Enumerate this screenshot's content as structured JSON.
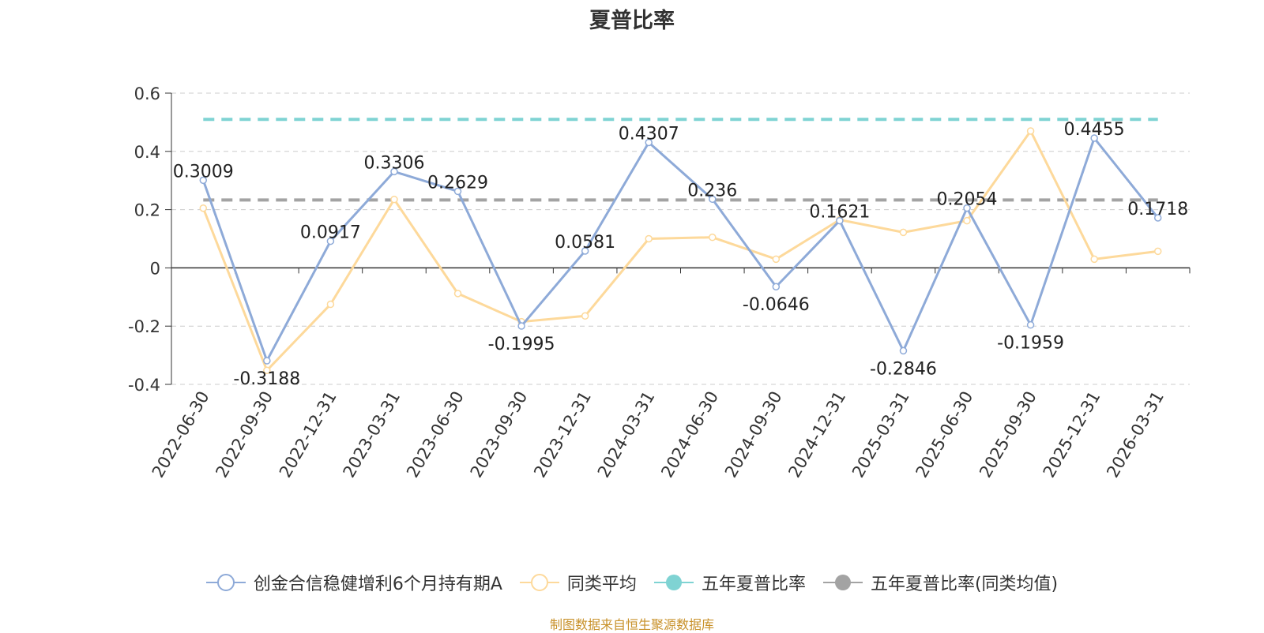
{
  "chart_data": {
    "type": "line",
    "title": "夏普比率",
    "categories": [
      "2022-06-30",
      "2022-09-30",
      "2022-12-31",
      "2023-03-31",
      "2023-06-30",
      "2023-09-30",
      "2023-12-31",
      "2024-03-31",
      "2024-06-30",
      "2024-09-30",
      "2024-12-31",
      "2025-03-31",
      "2025-06-30",
      "2025-09-30",
      "2025-12-31",
      "2026-03-31"
    ],
    "ylim": [
      -0.4,
      0.6
    ],
    "yticks": [
      0.6,
      0.4,
      0.2,
      0,
      -0.2,
      -0.4
    ],
    "ytick_labels": [
      "0.6",
      "0.4",
      "0.2",
      "0",
      "-0.2",
      "-0.4"
    ],
    "grid": true,
    "legend_position": "bottom",
    "series": [
      {
        "name": "创金合信稳健增利6个月持有期A",
        "color": "#8eaad8",
        "values": [
          0.3009,
          -0.3188,
          0.0917,
          0.3306,
          0.2629,
          -0.1995,
          0.0581,
          0.4307,
          0.236,
          -0.0646,
          0.1621,
          -0.2846,
          0.2054,
          -0.1959,
          0.4455,
          0.1718
        ],
        "labels": [
          "0.3009",
          "-0.3188",
          "0.0917",
          "0.3306",
          "0.2629",
          "-0.1995",
          "0.0581",
          "0.4307",
          "0.236",
          "-0.0646",
          "0.1621",
          "-0.2846",
          "0.2054",
          "-0.1959",
          "0.4455",
          "0.1718"
        ]
      },
      {
        "name": "同类平均",
        "color": "#fdd99b",
        "values": [
          0.205,
          -0.352,
          -0.125,
          0.235,
          -0.088,
          -0.185,
          -0.165,
          0.1,
          0.105,
          0.03,
          0.165,
          0.122,
          0.162,
          0.47,
          0.03,
          0.057
        ]
      },
      {
        "name": "五年夏普比率",
        "color": "#7fd3d3",
        "constant": 0.51
      },
      {
        "name": "五年夏普比率(同类均值)",
        "color": "#a3a3a3",
        "constant": 0.233
      }
    ]
  },
  "source_note": "制图数据来自恒生聚源数据库"
}
